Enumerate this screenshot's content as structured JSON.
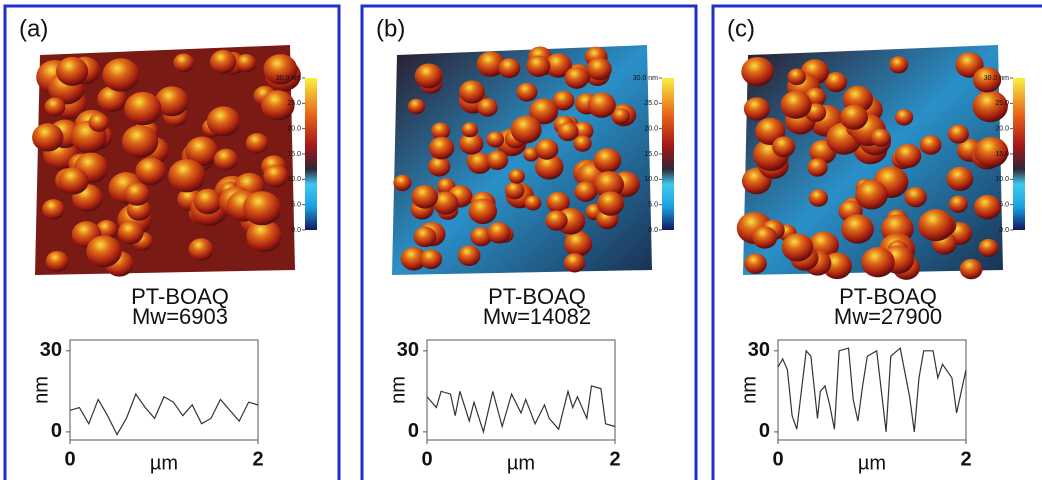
{
  "chart_data": [
    {
      "type": "line",
      "panel_label": "(a)",
      "title": "PT-BOAQ",
      "subtitle": "Mw=6903",
      "xlabel": "µm",
      "ylabel": "nm",
      "x": [
        0,
        0.1,
        0.2,
        0.3,
        0.4,
        0.5,
        0.6,
        0.7,
        0.8,
        0.9,
        1.0,
        1.1,
        1.2,
        1.3,
        1.4,
        1.5,
        1.6,
        1.7,
        1.8,
        1.9,
        2.0
      ],
      "series": [
        {
          "color": "#333333",
          "values": [
            8,
            9,
            3,
            12,
            6,
            -1,
            5,
            14,
            9,
            5,
            13,
            11,
            6,
            10,
            3,
            5,
            12,
            8,
            4,
            11,
            10
          ]
        }
      ],
      "xlim": [
        0,
        2
      ],
      "xticks": [
        0,
        2
      ],
      "ylim": [
        -3,
        34
      ],
      "yticks": [
        0,
        30
      ],
      "colorbar": {
        "lim": [
          0,
          30
        ],
        "ticks": [
          {
            "value": 30,
            "label": "30.0 nm"
          },
          {
            "value": 25,
            "label": "25.0"
          },
          {
            "value": 20,
            "label": "20.0"
          },
          {
            "value": 15,
            "label": "15.0"
          },
          {
            "value": 10,
            "label": "10.0"
          },
          {
            "value": 5,
            "label": "5.0"
          },
          {
            "value": 0,
            "label": "0.0"
          }
        ]
      }
    },
    {
      "type": "line",
      "panel_label": "(b)",
      "title": "PT-BOAQ",
      "subtitle": "Mw=14082",
      "xlabel": "µm",
      "ylabel": "nm",
      "x": [
        0,
        0.1,
        0.15,
        0.25,
        0.3,
        0.35,
        0.45,
        0.5,
        0.6,
        0.7,
        0.8,
        0.9,
        1.0,
        1.05,
        1.15,
        1.25,
        1.3,
        1.4,
        1.5,
        1.55,
        1.6,
        1.7,
        1.75,
        1.85,
        1.9,
        2.0
      ],
      "series": [
        {
          "color": "#333333",
          "values": [
            13,
            9,
            15,
            14,
            6,
            15,
            4,
            11,
            0,
            15,
            2,
            14,
            7,
            12,
            3,
            10,
            5,
            1,
            15,
            9,
            13,
            5,
            17,
            16,
            3,
            2
          ]
        }
      ],
      "xlim": [
        0,
        2
      ],
      "xticks": [
        0,
        2
      ],
      "ylim": [
        -3,
        34
      ],
      "yticks": [
        0,
        30
      ],
      "colorbar": {
        "lim": [
          0,
          30
        ],
        "ticks": [
          {
            "value": 30,
            "label": "30.0 nm"
          },
          {
            "value": 25,
            "label": "25.0"
          },
          {
            "value": 20,
            "label": "20.0"
          },
          {
            "value": 15,
            "label": "15.0"
          },
          {
            "value": 10,
            "label": "10.0"
          },
          {
            "value": 5,
            "label": "5.0"
          },
          {
            "value": 0,
            "label": "0.0"
          }
        ]
      }
    },
    {
      "type": "line",
      "panel_label": "(c)",
      "title": "PT-BOAQ",
      "subtitle": "Mw=27900",
      "xlabel": "µm",
      "ylabel": "nm",
      "x": [
        0,
        0.05,
        0.1,
        0.15,
        0.2,
        0.3,
        0.35,
        0.42,
        0.45,
        0.5,
        0.55,
        0.6,
        0.65,
        0.75,
        0.8,
        0.85,
        0.9,
        0.95,
        1.05,
        1.1,
        1.15,
        1.2,
        1.3,
        1.4,
        1.45,
        1.5,
        1.55,
        1.65,
        1.7,
        1.75,
        1.85,
        1.9,
        2.0
      ],
      "series": [
        {
          "color": "#333333",
          "values": [
            24,
            27,
            23,
            6,
            1,
            30,
            28,
            5,
            15,
            17,
            10,
            1,
            30,
            31,
            12,
            4,
            17,
            28,
            30,
            15,
            0,
            28,
            31,
            13,
            0,
            20,
            30,
            30,
            20,
            25,
            20,
            7,
            23
          ]
        }
      ],
      "xlim": [
        0,
        2
      ],
      "xticks": [
        0,
        2
      ],
      "ylim": [
        -3,
        34
      ],
      "yticks": [
        0,
        30
      ],
      "colorbar": {
        "lim": [
          0,
          30
        ],
        "ticks": [
          {
            "value": 30,
            "label": "30.0 nm"
          },
          {
            "value": 25,
            "label": "25.0"
          },
          {
            "value": 20,
            "label": "20.0"
          },
          {
            "value": 15,
            "label": "15.0"
          },
          {
            "value": 10,
            "label": "10.0"
          },
          {
            "value": 5,
            "label": "5.0"
          },
          {
            "value": 0,
            "label": "0.0"
          }
        ]
      }
    }
  ]
}
